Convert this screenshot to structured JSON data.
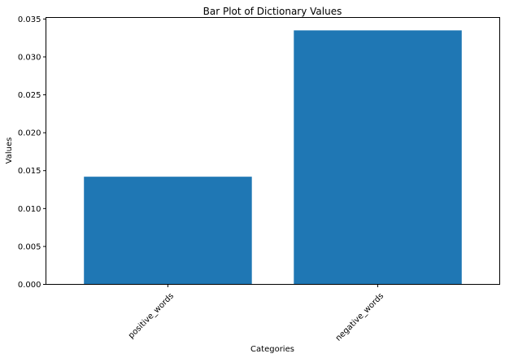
{
  "chart_data": {
    "type": "bar",
    "title": "Bar Plot of Dictionary Values",
    "xlabel": "Categories",
    "ylabel": "Values",
    "categories": [
      "positive_words",
      "negative_words"
    ],
    "values": [
      0.0142,
      0.0335
    ],
    "ylim": [
      0,
      0.0352
    ],
    "yticks": [
      "0.000",
      "0.005",
      "0.010",
      "0.015",
      "0.020",
      "0.025",
      "0.030",
      "0.035"
    ],
    "xtick_rotation_deg": 45,
    "grid": false,
    "legend": "none",
    "bar_color": "#1f77b4"
  }
}
